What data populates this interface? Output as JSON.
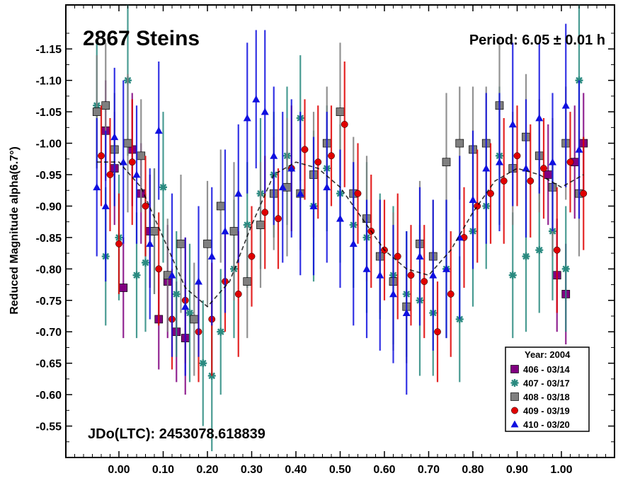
{
  "chart_data": {
    "type": "scatter",
    "title": "2867 Steins",
    "period_label": "Period: 6.05 ± 0.01 h",
    "epoch_label": "JDo(LTC): 2453078.618839",
    "ylabel": "Reduced Magnitude alpha(6.7°)",
    "xlabel": "",
    "xlim": [
      -0.12,
      1.12
    ],
    "ylim": [
      -0.5,
      -1.22
    ],
    "y_inverted": true,
    "grid": false,
    "legend_placement": "bottom-right",
    "legend_title": "Year: 2004",
    "xticks": [
      "0.00",
      "0.10",
      "0.20",
      "0.30",
      "0.40",
      "0.50",
      "0.60",
      "0.70",
      "0.80",
      "0.90",
      "1.00"
    ],
    "yticks": [
      "-0.55",
      "-0.60",
      "-0.65",
      "-0.70",
      "-0.75",
      "-0.80",
      "-0.85",
      "-0.90",
      "-0.95",
      "-1.00",
      "-1.05",
      "-1.10",
      "-1.15"
    ],
    "fit_curve": {
      "x": [
        -0.05,
        0.0,
        0.05,
        0.1,
        0.15,
        0.2,
        0.25,
        0.3,
        0.35,
        0.4,
        0.45,
        0.5,
        0.55,
        0.6,
        0.65,
        0.7,
        0.75,
        0.8,
        0.85,
        0.9,
        0.95,
        1.0,
        1.05
      ],
      "y": [
        -0.97,
        -0.97,
        -0.93,
        -0.85,
        -0.77,
        -0.74,
        -0.78,
        -0.87,
        -0.95,
        -0.97,
        -0.96,
        -0.93,
        -0.88,
        -0.83,
        -0.8,
        -0.79,
        -0.83,
        -0.89,
        -0.94,
        -0.96,
        -0.95,
        -0.93,
        -0.95
      ]
    },
    "series": [
      {
        "name": "406 - 03/14",
        "color": "#800080",
        "marker": "square",
        "x": [
          -0.03,
          -0.01,
          0.01,
          0.03,
          0.05,
          0.07,
          0.09,
          0.11,
          0.13,
          0.15,
          0.97,
          0.99,
          1.01,
          1.03,
          1.05
        ],
        "y": [
          -1.02,
          -0.96,
          -0.77,
          -0.99,
          -0.92,
          -0.86,
          -0.72,
          -0.78,
          -0.7,
          -0.69,
          -0.95,
          -0.79,
          -0.76,
          -0.97,
          -1.0
        ],
        "err": [
          0.08,
          0.09,
          0.08,
          0.09,
          0.08,
          0.09,
          0.08,
          0.09,
          0.08,
          0.09,
          0.08,
          0.09,
          0.08,
          0.09,
          0.08
        ]
      },
      {
        "name": "407 - 03/17",
        "color": "#2a8a80",
        "marker": "asterisk",
        "x": [
          -0.05,
          -0.03,
          0.0,
          0.02,
          0.04,
          0.06,
          0.08,
          0.1,
          0.13,
          0.16,
          0.19,
          0.21,
          0.23,
          0.26,
          0.29,
          0.32,
          0.35,
          0.38,
          0.41,
          0.44,
          0.47,
          0.5,
          0.53,
          0.56,
          0.59,
          0.62,
          0.65,
          0.68,
          0.71,
          0.74,
          0.77,
          0.8,
          0.83,
          0.86,
          0.89,
          0.92,
          0.95,
          0.98,
          1.01,
          1.04
        ],
        "y": [
          -1.06,
          -0.82,
          -0.85,
          -1.1,
          -0.79,
          -0.81,
          -0.86,
          -0.93,
          -0.76,
          -0.73,
          -0.65,
          -0.63,
          -0.7,
          -0.8,
          -0.87,
          -0.92,
          -0.95,
          -0.98,
          -1.04,
          -0.9,
          -0.96,
          -0.92,
          -0.87,
          -0.85,
          -0.82,
          -0.79,
          -0.76,
          -0.75,
          -0.73,
          -0.8,
          -0.72,
          -0.86,
          -0.9,
          -0.98,
          -0.79,
          -0.82,
          -0.83,
          -0.86,
          -0.8,
          -1.1
        ],
        "err": [
          0.1,
          0.11,
          0.1,
          0.12,
          0.1,
          0.11,
          0.1,
          0.12,
          0.1,
          0.11,
          0.1,
          0.12,
          0.1,
          0.11,
          0.1,
          0.12,
          0.1,
          0.11,
          0.1,
          0.12,
          0.1,
          0.11,
          0.1,
          0.12,
          0.1,
          0.11,
          0.1,
          0.12,
          0.1,
          0.11,
          0.1,
          0.12,
          0.1,
          0.11,
          0.1,
          0.12,
          0.1,
          0.11,
          0.1,
          0.12
        ]
      },
      {
        "name": "408 - 03/18",
        "color": "#7f7f7f",
        "marker": "square",
        "x": [
          -0.05,
          -0.03,
          -0.01,
          0.02,
          0.05,
          0.08,
          0.11,
          0.14,
          0.17,
          0.2,
          0.23,
          0.26,
          0.29,
          0.32,
          0.35,
          0.38,
          0.41,
          0.44,
          0.47,
          0.5,
          0.53,
          0.56,
          0.59,
          0.62,
          0.65,
          0.68,
          0.71,
          0.74,
          0.77,
          0.8,
          0.83,
          0.86,
          0.89,
          0.92,
          0.95,
          0.98,
          1.01,
          1.04
        ],
        "y": [
          -1.05,
          -1.06,
          -0.99,
          -1.0,
          -0.98,
          -0.86,
          -0.79,
          -0.84,
          -0.72,
          -0.84,
          -0.9,
          -0.86,
          -0.78,
          -0.87,
          -0.92,
          -0.93,
          -0.92,
          -0.95,
          -1.0,
          -1.05,
          -0.92,
          -0.88,
          -0.82,
          -0.78,
          -0.74,
          -0.84,
          -0.82,
          -0.97,
          -1.0,
          -0.99,
          -1.0,
          -1.06,
          -0.96,
          -1.01,
          -0.98,
          -0.93,
          -1.0,
          -0.92
        ],
        "err": [
          0.09,
          0.1,
          0.09,
          0.11,
          0.09,
          0.1,
          0.09,
          0.11,
          0.09,
          0.1,
          0.09,
          0.11,
          0.09,
          0.1,
          0.09,
          0.11,
          0.09,
          0.1,
          0.09,
          0.11,
          0.09,
          0.1,
          0.09,
          0.11,
          0.09,
          0.1,
          0.09,
          0.11,
          0.09,
          0.1,
          0.09,
          0.11,
          0.09,
          0.1,
          0.09,
          0.11,
          0.09,
          0.1
        ]
      },
      {
        "name": "409 - 03/19",
        "color": "#e00000",
        "marker": "circle",
        "x": [
          -0.04,
          -0.02,
          0.0,
          0.03,
          0.06,
          0.09,
          0.12,
          0.15,
          0.18,
          0.21,
          0.24,
          0.27,
          0.3,
          0.33,
          0.36,
          0.39,
          0.42,
          0.45,
          0.48,
          0.51,
          0.54,
          0.57,
          0.6,
          0.63,
          0.66,
          0.69,
          0.72,
          0.75,
          0.78,
          0.81,
          0.84,
          0.87,
          0.9,
          0.93,
          0.96,
          0.99,
          1.02,
          1.05
        ],
        "y": [
          -0.98,
          -0.95,
          -0.84,
          -0.97,
          -0.9,
          -0.8,
          -0.72,
          -0.75,
          -0.7,
          -0.72,
          -0.78,
          -0.76,
          -0.82,
          -0.89,
          -0.88,
          -0.96,
          -0.99,
          -0.97,
          -0.98,
          -1.03,
          -0.92,
          -0.86,
          -0.83,
          -0.82,
          -0.79,
          -0.78,
          -0.7,
          -0.76,
          -0.85,
          -0.9,
          -0.92,
          -0.94,
          -0.98,
          -0.94,
          -0.96,
          -0.83,
          -0.97,
          -0.92
        ],
        "err": [
          0.08,
          0.09,
          0.08,
          0.1,
          0.08,
          0.09,
          0.08,
          0.1,
          0.08,
          0.09,
          0.08,
          0.1,
          0.08,
          0.09,
          0.08,
          0.1,
          0.08,
          0.09,
          0.08,
          0.1,
          0.08,
          0.09,
          0.08,
          0.1,
          0.08,
          0.09,
          0.08,
          0.1,
          0.08,
          0.09,
          0.08,
          0.1,
          0.08,
          0.09,
          0.08,
          0.1,
          0.08,
          0.09
        ]
      },
      {
        "name": "410 - 03/20",
        "color": "#1010e0",
        "marker": "triangle",
        "x": [
          -0.05,
          -0.03,
          -0.01,
          0.01,
          0.04,
          0.07,
          0.09,
          0.12,
          0.15,
          0.18,
          0.21,
          0.24,
          0.27,
          0.29,
          0.31,
          0.33,
          0.35,
          0.37,
          0.39,
          0.41,
          0.44,
          0.47,
          0.5,
          0.53,
          0.56,
          0.59,
          0.62,
          0.65,
          0.68,
          0.71,
          0.74,
          0.77,
          0.8,
          0.83,
          0.86,
          0.89,
          0.92,
          0.95,
          0.98,
          1.01,
          1.04
        ],
        "y": [
          -0.93,
          -0.9,
          -1.01,
          -0.97,
          -0.95,
          -0.84,
          -1.02,
          -0.79,
          -0.74,
          -0.78,
          -0.82,
          -0.86,
          -0.92,
          -1.04,
          -1.07,
          -1.05,
          -0.98,
          -0.93,
          -0.96,
          -0.92,
          -0.9,
          -0.93,
          -0.88,
          -0.84,
          -0.8,
          -0.79,
          -0.76,
          -0.73,
          -0.82,
          -0.79,
          -0.8,
          -0.85,
          -0.91,
          -0.96,
          -0.97,
          -1.03,
          -0.96,
          -1.04,
          -0.97,
          -1.06,
          -0.99
        ],
        "err": [
          0.11,
          0.12,
          0.11,
          0.13,
          0.11,
          0.12,
          0.11,
          0.13,
          0.11,
          0.12,
          0.11,
          0.13,
          0.11,
          0.12,
          0.11,
          0.13,
          0.11,
          0.12,
          0.11,
          0.13,
          0.11,
          0.12,
          0.11,
          0.13,
          0.11,
          0.12,
          0.11,
          0.13,
          0.11,
          0.12,
          0.11,
          0.13,
          0.11,
          0.12,
          0.11,
          0.13,
          0.11,
          0.12,
          0.11,
          0.13,
          0.11
        ]
      }
    ]
  }
}
